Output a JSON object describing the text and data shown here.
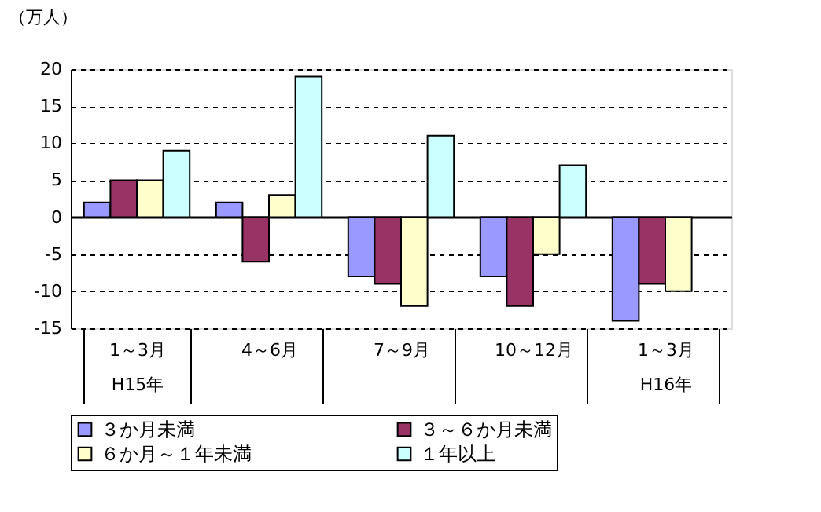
{
  "chart_data": {
    "type": "bar",
    "ylabel": "（万人）",
    "categories": [
      "1～3月\nH15年",
      "4～6月",
      "7～9月",
      "10～12月",
      "1～3月\nH16年"
    ],
    "series": [
      {
        "name": "３か月未満",
        "color": "#9999ff",
        "values": [
          2,
          2,
          -8,
          -8,
          -14
        ]
      },
      {
        "name": "３～６か月未満",
        "color": "#993366",
        "values": [
          5,
          -6,
          -9,
          -12,
          -9
        ]
      },
      {
        "name": "６か月～１年未満",
        "color": "#ffffcc",
        "values": [
          5,
          3,
          -12,
          -5,
          -10
        ]
      },
      {
        "name": "１年以上",
        "color": "#ccffff",
        "values": [
          9,
          19,
          11,
          7,
          null
        ]
      }
    ],
    "ylim": [
      -15,
      20
    ],
    "yticks": [
      -15,
      -10,
      -5,
      0,
      5,
      10,
      15,
      20
    ],
    "grid": "y",
    "legend": "bottom"
  }
}
